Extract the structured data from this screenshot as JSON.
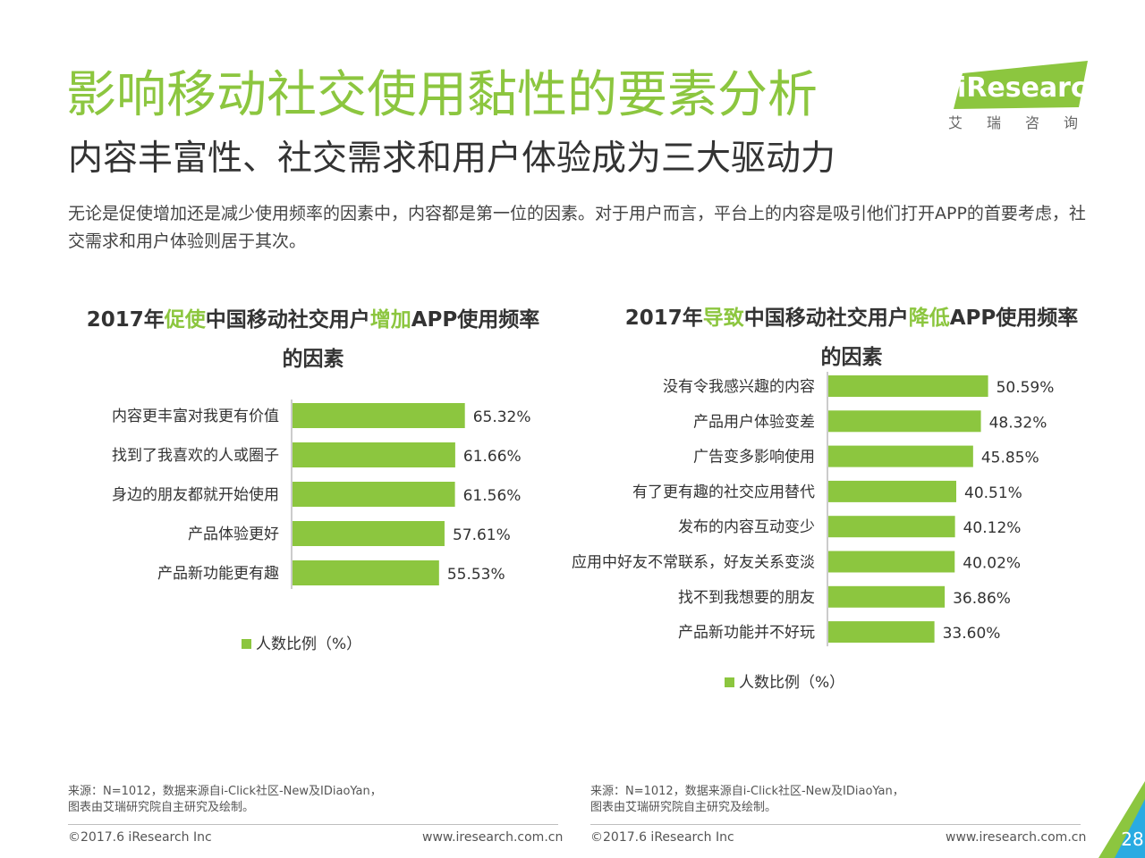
{
  "header": {
    "title": "影响移动社交使用黏性的要素分析",
    "subtitle": "内容丰富性、社交需求和用户体验成为三大驱动力",
    "description": "无论是促使增加还是减少使用频率的因素中，内容都是第一位的因素。对于用户而言，平台上的内容是吸引他们打开APP的首要考虑，社交需求和用户体验则居于其次。"
  },
  "logo": {
    "text": "iResearch",
    "cn": "艾瑞咨询"
  },
  "charts": {
    "left": {
      "title_parts": [
        "2017年",
        "促使",
        "中国移动社交用户",
        "增加",
        "APP使用频率",
        "的因素"
      ]
    },
    "right": {
      "title_parts": [
        "2017年",
        "导致",
        "中国移动社交用户",
        "降低",
        "APP使用频率",
        "的因素"
      ]
    }
  },
  "chart_data": [
    {
      "type": "bar",
      "orientation": "horizontal",
      "title": "2017年促使中国移动社交用户增加APP使用频率的因素",
      "categories": [
        "内容更丰富对我更有价值",
        "找到了我喜欢的人或圈子",
        "身边的朋友都就开始使用",
        "产品体验更好",
        "产品新功能更有趣"
      ],
      "series": [
        {
          "name": "人数比例（%）",
          "values": [
            65.32,
            61.66,
            61.56,
            57.61,
            55.53
          ]
        }
      ],
      "data_labels": [
        "65.32%",
        "61.66%",
        "61.56%",
        "57.61%",
        "55.53%"
      ],
      "legend": "bottom-center",
      "grid": false,
      "color": "#8cc63f"
    },
    {
      "type": "bar",
      "orientation": "horizontal",
      "title": "2017年导致中国移动社交用户降低APP使用频率的因素",
      "categories": [
        "没有令我感兴趣的内容",
        "产品用户体验变差",
        "广告变多影响使用",
        "有了更有趣的社交应用替代",
        "发布的内容互动变少",
        "应用中好友不常联系，好友关系变淡",
        "找不到我想要的朋友",
        "产品新功能并不好玩"
      ],
      "series": [
        {
          "name": "人数比例（%）",
          "values": [
            50.59,
            48.32,
            45.85,
            40.51,
            40.12,
            40.02,
            36.86,
            33.6
          ]
        }
      ],
      "data_labels": [
        "50.59%",
        "48.32%",
        "45.85%",
        "40.51%",
        "40.12%",
        "40.02%",
        "36.86%",
        "33.60%"
      ],
      "legend": "bottom-center",
      "grid": false,
      "color": "#8cc63f"
    }
  ],
  "footer": {
    "left": {
      "source_line1": "来源：N=1012，数据来源自i-Click社区-New及IDiaoYan，",
      "source_line2": "图表由艾瑞研究院自主研究及绘制。",
      "copyright": "©2017.6 iResearch Inc",
      "url": "www.iresearch.com.cn"
    },
    "right": {
      "source_line1": "来源：N=1012，数据来源自i-Click社区-New及IDiaoYan，",
      "source_line2": "图表由艾瑞研究院自主研究及绘制。",
      "copyright": "©2017.6 iResearch Inc",
      "url": "www.iresearch.com.cn"
    },
    "page_number": "28"
  },
  "colors": {
    "accent": "#8cc63f",
    "page_corner": "#29abe2"
  }
}
